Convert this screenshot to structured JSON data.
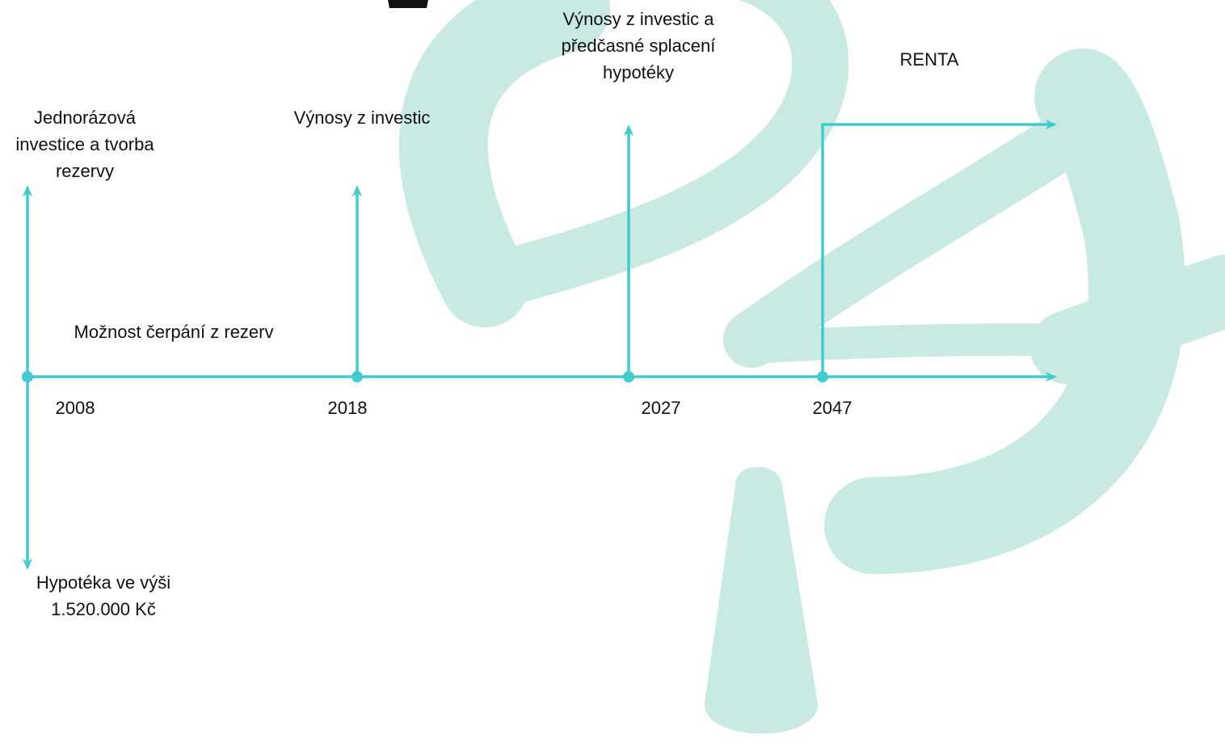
{
  "timeline": {
    "note": "Možnost čerpání z rezerv",
    "events": [
      {
        "year": "2008",
        "above": [
          "Jednorázová",
          "investice a tvorba",
          "rezervy"
        ],
        "below": [
          "Hypotéka ve výši",
          "1.520.000 Kč"
        ]
      },
      {
        "year": "2018",
        "above": [
          "Výnosy z investic"
        ]
      },
      {
        "year": "2027",
        "above": [
          "Výnosy z investic a",
          "předčasné splacení",
          "hypotéky"
        ]
      },
      {
        "year": "2047",
        "above": [
          "RENTA"
        ]
      }
    ]
  }
}
